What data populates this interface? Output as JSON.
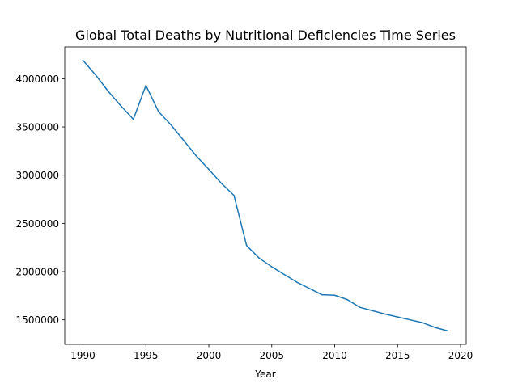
{
  "chart_data": {
    "type": "line",
    "title": "Global Total Deaths by Nutritional Deficiencies Time Series",
    "xlabel": "Year",
    "ylabel": "",
    "xlim": [
      1988.55,
      2020.45
    ],
    "ylim": [
      1246000,
      4330000
    ],
    "x_ticks": [
      1990,
      1995,
      2000,
      2005,
      2010,
      2015,
      2020
    ],
    "y_ticks": [
      1500000,
      2000000,
      2500000,
      3000000,
      3500000,
      4000000
    ],
    "grid": false,
    "legend": "none",
    "series": [
      {
        "color": "#1f77b4",
        "x": [
          1990,
          1991,
          1992,
          1993,
          1994,
          1995,
          1996,
          1997,
          1998,
          1999,
          2000,
          2001,
          2002,
          2003,
          2004,
          2005,
          2006,
          2007,
          2008,
          2009,
          2010,
          2011,
          2012,
          2013,
          2014,
          2015,
          2016,
          2017,
          2018,
          2019
        ],
        "y": [
          4190000,
          4040000,
          3870000,
          3720000,
          3580000,
          3930000,
          3660000,
          3520000,
          3360000,
          3200000,
          3060000,
          2915000,
          2790000,
          2270000,
          2140000,
          2050000,
          1970000,
          1890000,
          1825000,
          1760000,
          1755000,
          1710000,
          1630000,
          1595000,
          1560000,
          1530000,
          1500000,
          1470000,
          1420000,
          1385000
        ]
      }
    ]
  }
}
